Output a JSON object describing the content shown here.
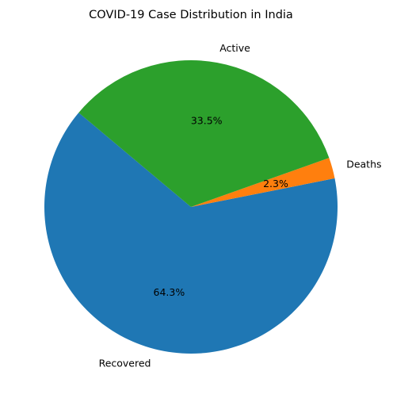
{
  "chart_data": {
    "type": "pie",
    "title": "COVID-19 Case Distribution in India",
    "slices": [
      {
        "label": "Recovered",
        "value": 64.3,
        "pct_label": "64.3%",
        "color": "#1f77b4"
      },
      {
        "label": "Deaths",
        "value": 2.3,
        "pct_label": "2.3%",
        "color": "#ff7f0e"
      },
      {
        "label": "Active",
        "value": 33.5,
        "pct_label": "33.5%",
        "color": "#2ca02c"
      }
    ],
    "start_angle_deg": 140,
    "direction": "counterclockwise"
  }
}
